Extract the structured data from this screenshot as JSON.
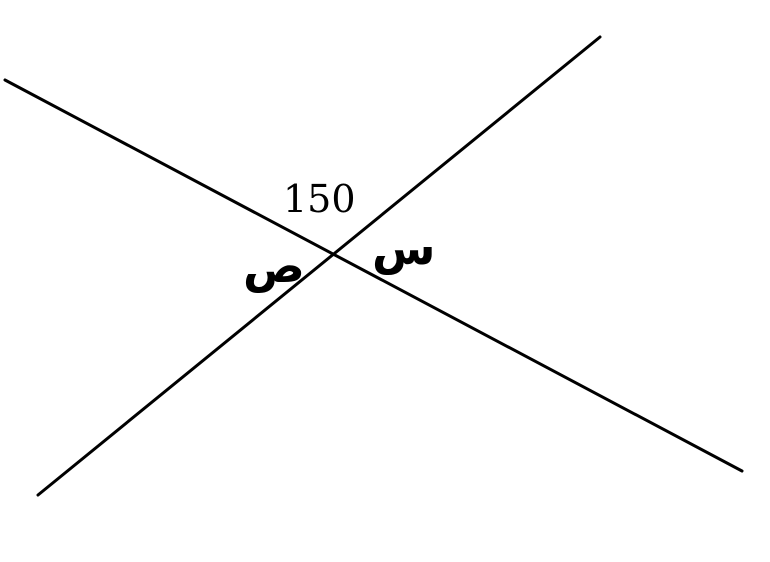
{
  "labels": {
    "angle_top": "150",
    "angle_right": "س",
    "angle_left": "ص"
  }
}
